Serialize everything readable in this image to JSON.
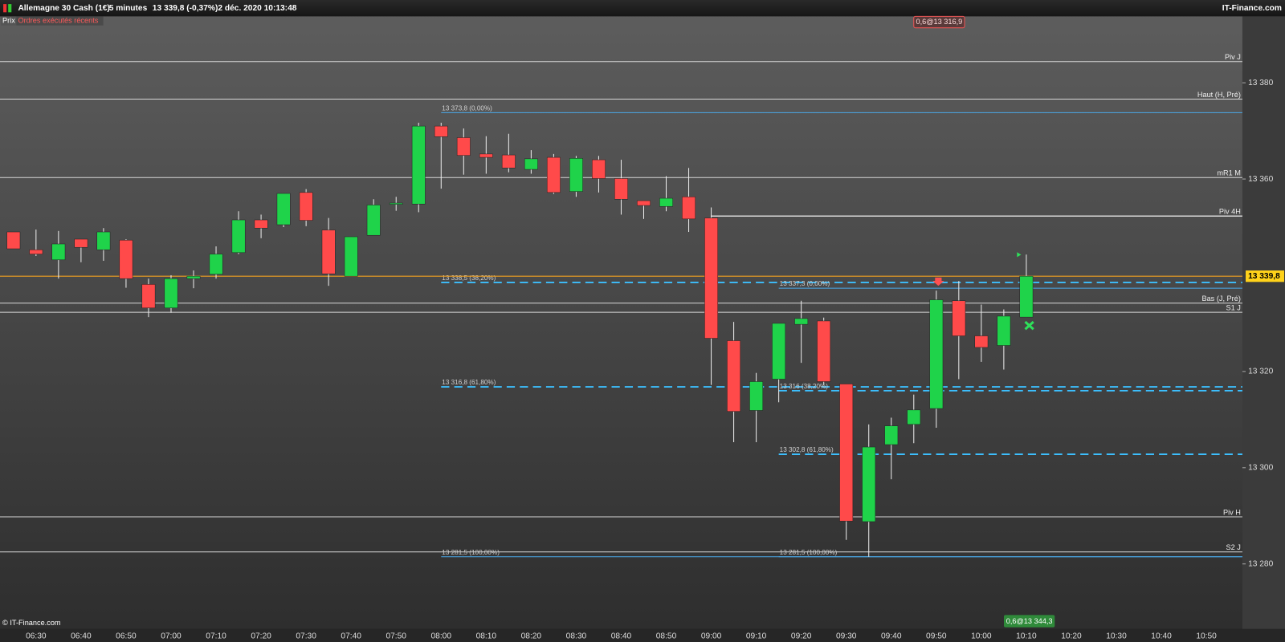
{
  "ui": {
    "instrument": "Allemagne 30 Cash (1€)",
    "period": "5 minutes",
    "quote": "13 339,8 (-0,37%)",
    "datetime": "2 déc. 2020 10:13:48",
    "brand": "IT-Finance.com",
    "tab_price": "Prix",
    "tab_orders": "Ordres exécutés récents",
    "order_top": "0,6@13 316,9",
    "order_bottom": "0,6@13 344,3",
    "copyright": "© IT-Finance.com"
  },
  "chart_data": {
    "type": "candlestick",
    "x": [
      "06:25",
      "06:30",
      "06:35",
      "06:40",
      "06:45",
      "06:50",
      "06:55",
      "07:00",
      "07:05",
      "07:10",
      "07:15",
      "07:20",
      "07:25",
      "07:30",
      "07:35",
      "07:40",
      "07:45",
      "07:50",
      "07:55",
      "08:00",
      "08:05",
      "08:10",
      "08:15",
      "08:20",
      "08:25",
      "08:30",
      "08:35",
      "08:40",
      "08:45",
      "08:50",
      "08:55",
      "09:00",
      "09:05",
      "09:10",
      "09:15",
      "09:20",
      "09:25",
      "09:30",
      "09:35",
      "09:40",
      "09:45",
      "09:50",
      "09:55",
      "10:00",
      "10:05",
      "10:10"
    ],
    "open": [
      13349,
      13345.3,
      13343.2,
      13347.5,
      13345.3,
      13347.3,
      13338.1,
      13333.2,
      13339.3,
      13340.2,
      13344.7,
      13351.5,
      13350.5,
      13357.2,
      13349.4,
      13339.8,
      13348.3,
      13354.9,
      13354.8,
      13371,
      13368.6,
      13365.2,
      13365,
      13362,
      13364.5,
      13357.4,
      13364,
      13360.1,
      13355.5,
      13354.3,
      13356.3,
      13351.9,
      13326.4,
      13311.9,
      13318.4,
      13329.8,
      13330.5,
      13317.4,
      13288.8,
      13304.8,
      13309,
      13312.3,
      13334.7,
      13327.4,
      13325.4,
      13331.3
    ],
    "high": [
      13349,
      13349.5,
      13349.2,
      13347.5,
      13349.8,
      13347.5,
      13339.3,
      13340,
      13341,
      13346,
      13353.3,
      13352.6,
      13357,
      13357.9,
      13351.9,
      13348,
      13355.8,
      13356.3,
      13371.7,
      13371.7,
      13370.5,
      13368.9,
      13369.4,
      13366,
      13365.2,
      13364.8,
      13364.8,
      13364,
      13355.5,
      13360.6,
      13362.3,
      13354.1,
      13330.3,
      13319.7,
      13330,
      13334.7,
      13331.2,
      13317.4,
      13309,
      13310.4,
      13315.2,
      13336.8,
      13338.8,
      13333.9,
      13332.9,
      13344.3
    ],
    "low": [
      13345.5,
      13344,
      13339.3,
      13342.7,
      13343,
      13337.4,
      13331.3,
      13332.2,
      13337.3,
      13339.3,
      13344.4,
      13347.7,
      13350,
      13350.2,
      13337.8,
      13339.8,
      13348.3,
      13353.4,
      13353.1,
      13358,
      13360.9,
      13361.1,
      13361.4,
      13361.1,
      13356.9,
      13356.3,
      13357.2,
      13352.6,
      13351.7,
      13353.3,
      13349,
      13317.2,
      13305.3,
      13305.3,
      13313.6,
      13321.8,
      13317.2,
      13285,
      13281.5,
      13297.6,
      13305.1,
      13308.3,
      13318.4,
      13322,
      13320.4,
      13331.3
    ],
    "close": [
      13345.5,
      13344.4,
      13346.5,
      13345.8,
      13349,
      13339.3,
      13333.2,
      13339.3,
      13339.8,
      13344.4,
      13351.5,
      13349.8,
      13357,
      13351.4,
      13340.3,
      13348,
      13354.6,
      13355,
      13371,
      13368.8,
      13364.9,
      13364.5,
      13362.3,
      13364.2,
      13357.2,
      13364.3,
      13360.1,
      13355.8,
      13354.5,
      13356,
      13351.7,
      13326.9,
      13311.7,
      13317.9,
      13330,
      13331,
      13317.9,
      13288.9,
      13304.3,
      13308.7,
      13312,
      13334.9,
      13327.4,
      13325,
      13331.5,
      13339.8
    ],
    "up_color": "#1fd34a",
    "down_color": "#ff4a4a",
    "xlim": [
      "06:22",
      "10:58"
    ],
    "xticks": [
      "06:30",
      "06:40",
      "06:50",
      "07:00",
      "07:10",
      "07:20",
      "07:30",
      "07:40",
      "07:50",
      "08:00",
      "08:10",
      "08:20",
      "08:30",
      "08:40",
      "08:50",
      "09:00",
      "09:10",
      "09:20",
      "09:30",
      "09:40",
      "09:50",
      "10:00",
      "10:10",
      "10:20",
      "10:30",
      "10:40",
      "10:50"
    ],
    "ylim": [
      13266.5,
      13393.8
    ],
    "yticks": [
      {
        "value": 13380,
        "label": "13 380"
      },
      {
        "value": 13360,
        "label": "13 360"
      },
      {
        "value": 13320,
        "label": "13 320"
      },
      {
        "value": 13300,
        "label": "13 300"
      },
      {
        "value": 13280,
        "label": "13 280"
      }
    ],
    "last_price": {
      "value": 13339.8,
      "label": "13 339,8"
    },
    "levels": [
      {
        "name": "Piv J",
        "price": 13384.4
      },
      {
        "name": "Haut (H, Pré)",
        "price": 13376.6
      },
      {
        "name": "mR1 M",
        "price": 13360.3
      },
      {
        "name": "Piv 4H",
        "price": 13352.3,
        "from": "09:00"
      },
      {
        "name": "Bas (J, Pré)",
        "price": 13334.2
      },
      {
        "name": "S1 J",
        "price": 13332.3
      },
      {
        "name": "Piv H",
        "price": 13289.8
      },
      {
        "name": "S2 J",
        "price": 13282.5
      }
    ],
    "fibs": [
      {
        "label": "13 373,8 (0,00%)",
        "price": 13373.8,
        "from": "08:00",
        "dash": false
      },
      {
        "label": "13 338,5 (38,20%)",
        "price": 13338.5,
        "from": "08:00",
        "dash": true
      },
      {
        "label": "13 316,8 (61,80%)",
        "price": 13316.8,
        "from": "08:00",
        "dash": true
      },
      {
        "label": "13 281,5 (100,00%)",
        "price": 13281.5,
        "from": "08:00",
        "dash": false
      },
      {
        "label": "13 337,3 (0,00%)",
        "price": 13337.3,
        "from": "09:15",
        "dash": false
      },
      {
        "label": "13 316 (38,20%)",
        "price": 13316,
        "from": "09:15",
        "dash": true
      },
      {
        "label": "13 302,8 (61,80%)",
        "price": 13302.8,
        "from": "09:15",
        "dash": true
      },
      {
        "label": "13 281,5 (100,00%)",
        "price": 13281.5,
        "from": "09:15",
        "dash": false
      }
    ]
  }
}
